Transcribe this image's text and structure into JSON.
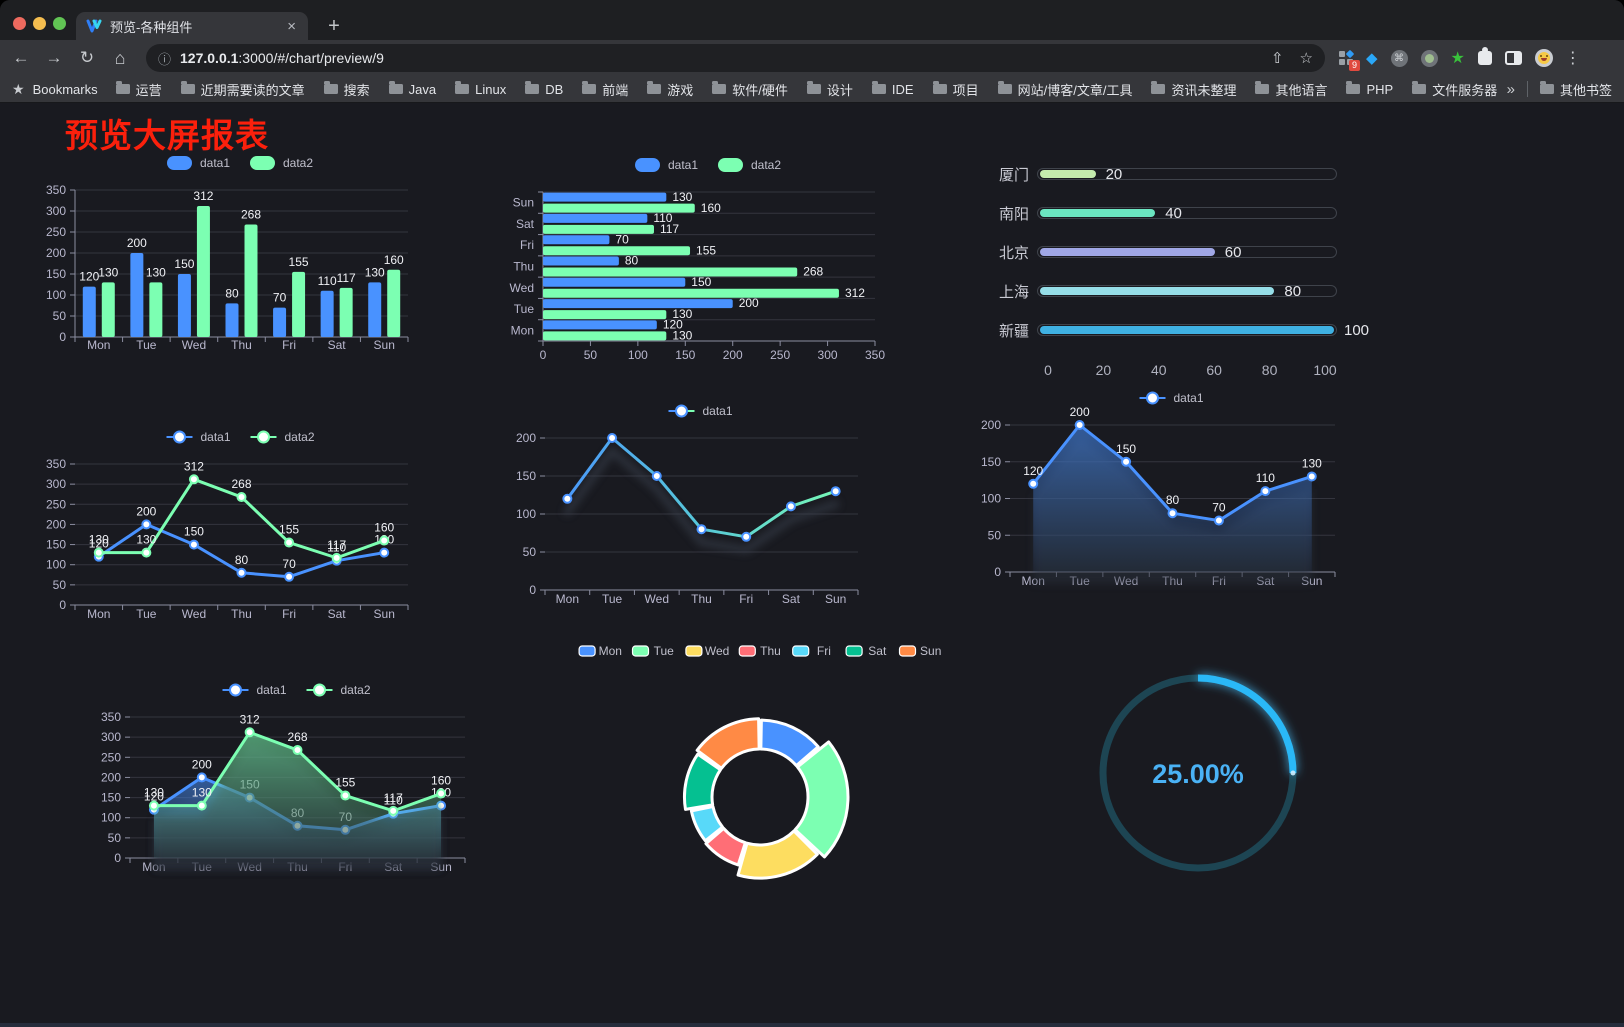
{
  "browser": {
    "tab_title": "预览-各种组件",
    "url_host": "127.0.0.1",
    "url_path": ":3000/#/chart/preview/9",
    "bookmarks_label": "Bookmarks",
    "bookmarks": [
      "运营",
      "近期需要读的文章",
      "搜索",
      "Java",
      "Linux",
      "DB",
      "前端",
      "游戏",
      "软件/硬件",
      "设计",
      "IDE",
      "项目",
      "网站/博客/文章/工具",
      "资讯未整理",
      "其他语言",
      "PHP",
      "文件服务器"
    ],
    "other_bookmarks": "其他书签",
    "ext_badge": "9",
    "icons": {
      "close": "×",
      "new_tab": "+",
      "back": "←",
      "forward": "→",
      "reload": "↻",
      "home": "⌂",
      "share": "⇧",
      "star": "☆",
      "info": "ⓘ",
      "menu": "⋮",
      "overflow": "»",
      "bookmark_star": "★",
      "command": "⌘",
      "gem": "◆",
      "green_star": "★"
    },
    "traffic_lights": [
      "#ee6a5f",
      "#f5bd4f",
      "#61c454"
    ]
  },
  "page": {
    "title": "预览大屏报表",
    "title_color": "#fb200c"
  },
  "chart_data": [
    {
      "id": "bar-vertical",
      "type": "bar",
      "categories": [
        "Mon",
        "Tue",
        "Wed",
        "Thu",
        "Fri",
        "Sat",
        "Sun"
      ],
      "series": [
        {
          "name": "data1",
          "color": "#4992ff",
          "values": [
            120,
            200,
            150,
            80,
            70,
            110,
            130
          ]
        },
        {
          "name": "data2",
          "color": "#7cffb2",
          "values": [
            130,
            130,
            312,
            268,
            155,
            117,
            160
          ]
        }
      ],
      "ylim": [
        0,
        350
      ],
      "ytick_step": 50,
      "legend_position": "top",
      "grid": true
    },
    {
      "id": "bar-horizontal",
      "type": "bar",
      "orientation": "horizontal",
      "category_axis_reversed": true,
      "categories": [
        "Mon",
        "Tue",
        "Wed",
        "Thu",
        "Fri",
        "Sat",
        "Sun"
      ],
      "series": [
        {
          "name": "data1",
          "color": "#4992ff",
          "values": [
            120,
            200,
            150,
            80,
            70,
            110,
            130
          ]
        },
        {
          "name": "data2",
          "color": "#7cffb2",
          "values": [
            130,
            130,
            312,
            268,
            155,
            117,
            160
          ]
        }
      ],
      "xlim": [
        0,
        350
      ],
      "xtick_step": 50,
      "legend_position": "top",
      "grid": true
    },
    {
      "id": "progress-bars",
      "type": "bar",
      "orientation": "horizontal-progress",
      "items": [
        {
          "label": "厦门",
          "value": 20,
          "color": "#c4ebad"
        },
        {
          "label": "南阳",
          "value": 40,
          "color": "#6be6c1"
        },
        {
          "label": "北京",
          "value": 60,
          "color": "#a0a7e6"
        },
        {
          "label": "上海",
          "value": 80,
          "color": "#96dee8"
        },
        {
          "label": "新疆",
          "value": 100,
          "color": "#3fb1e3"
        }
      ],
      "xlim": [
        0,
        100
      ],
      "xticks": [
        0,
        20,
        40,
        60,
        80,
        100
      ]
    },
    {
      "id": "line-two-series",
      "type": "line",
      "categories": [
        "Mon",
        "Tue",
        "Wed",
        "Thu",
        "Fri",
        "Sat",
        "Sun"
      ],
      "series": [
        {
          "name": "data1",
          "color": "#4992ff",
          "values": [
            120,
            200,
            150,
            80,
            70,
            110,
            130
          ]
        },
        {
          "name": "data2",
          "color": "#7cffb2",
          "values": [
            130,
            130,
            312,
            268,
            155,
            117,
            160
          ]
        }
      ],
      "ylim": [
        0,
        350
      ],
      "ytick_step": 50,
      "point_labels": true,
      "legend_position": "top"
    },
    {
      "id": "line-gradient",
      "type": "line",
      "categories": [
        "Mon",
        "Tue",
        "Wed",
        "Thu",
        "Fri",
        "Sat",
        "Sun"
      ],
      "series": [
        {
          "name": "data1",
          "gradient": [
            "#4992ff",
            "#57c8d8",
            "#7cffb2"
          ],
          "color": "#4992ff",
          "values": [
            120,
            200,
            150,
            80,
            70,
            110,
            130
          ]
        }
      ],
      "ylim": [
        0,
        200
      ],
      "ytick_step": 50,
      "point_labels": false,
      "shadow": true,
      "legend_position": "top"
    },
    {
      "id": "line-area",
      "type": "area",
      "categories": [
        "Mon",
        "Tue",
        "Wed",
        "Thu",
        "Fri",
        "Sat",
        "Sun"
      ],
      "series": [
        {
          "name": "data1",
          "color": "#4992ff",
          "values": [
            120,
            200,
            150,
            80,
            70,
            110,
            130
          ]
        }
      ],
      "ylim": [
        0,
        200
      ],
      "ytick_step": 50,
      "point_labels": true,
      "legend_position": "top"
    },
    {
      "id": "line-area-two",
      "type": "area",
      "categories": [
        "Mon",
        "Tue",
        "Wed",
        "Thu",
        "Fri",
        "Sat",
        "Sun"
      ],
      "series": [
        {
          "name": "data1",
          "color": "#4992ff",
          "values": [
            120,
            200,
            150,
            80,
            70,
            110,
            130
          ]
        },
        {
          "name": "data2",
          "color": "#7cffb2",
          "values": [
            130,
            130,
            312,
            268,
            155,
            117,
            160
          ]
        }
      ],
      "ylim": [
        0,
        350
      ],
      "ytick_step": 50,
      "point_labels": true,
      "legend_position": "top"
    },
    {
      "id": "donut",
      "type": "pie",
      "items": [
        {
          "label": "Mon",
          "value": 120,
          "color": "#4992ff"
        },
        {
          "label": "Tue",
          "value": 200,
          "color": "#7cffb2"
        },
        {
          "label": "Wed",
          "value": 150,
          "color": "#fddd60"
        },
        {
          "label": "Thu",
          "value": 80,
          "color": "#ff6e76"
        },
        {
          "label": "Fri",
          "value": 70,
          "color": "#58d9f9"
        },
        {
          "label": "Sat",
          "value": 110,
          "color": "#05c091"
        },
        {
          "label": "Sun",
          "value": 130,
          "color": "#ff8a45"
        }
      ],
      "legend_position": "top",
      "border_color": "#ffffff"
    },
    {
      "id": "gauge",
      "type": "gauge",
      "value": 25,
      "label": "25.00%",
      "color": "#2ab8f7",
      "track_color": "#1d4553",
      "text_color": "#4ab2f5"
    }
  ]
}
